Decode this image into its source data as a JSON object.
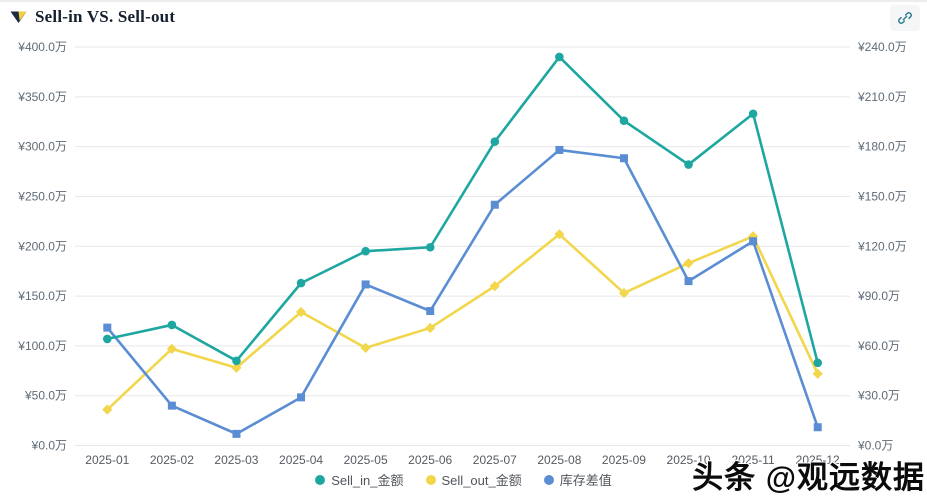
{
  "header": {
    "title": "Sell-in VS. Sell-out"
  },
  "toolbar": {
    "link_button": "share-link"
  },
  "watermark": {
    "text": "头条 @观远数据"
  },
  "chart_data": {
    "type": "line",
    "title": "Sell-in VS. Sell-out",
    "categories": [
      "2025-01",
      "2025-02",
      "2025-03",
      "2025-04",
      "2025-05",
      "2025-06",
      "2025-07",
      "2025-08",
      "2025-09",
      "2025-10",
      "2025-11",
      "2025-12"
    ],
    "series": [
      {
        "name": "Sell_in_金额",
        "yaxis": "left",
        "color": "#1ea7a0",
        "marker": "circle",
        "values": [
          107,
          121,
          85,
          163,
          195,
          199,
          305,
          390,
          326,
          282,
          333,
          83
        ]
      },
      {
        "name": "Sell_out_金额",
        "yaxis": "left",
        "color": "#f2d64b",
        "marker": "diamond",
        "values": [
          36,
          97,
          78,
          134,
          98,
          118,
          160,
          212,
          153,
          183,
          210,
          72
        ]
      },
      {
        "name": "库存差值",
        "yaxis": "right",
        "color": "#5a8dd3",
        "marker": "square",
        "values": [
          71,
          24,
          7,
          29,
          97,
          81,
          145,
          178,
          173,
          99,
          123,
          11
        ]
      }
    ],
    "left_axis": {
      "min": 0,
      "max": 400,
      "interval": 50,
      "unit": "万",
      "prefix": "¥",
      "labels": [
        "¥400.0万",
        "¥350.0万",
        "¥300.0万",
        "¥250.0万",
        "¥200.0万",
        "¥150.0万",
        "¥100.0万",
        "¥50.0万",
        "¥0.0万"
      ]
    },
    "right_axis": {
      "min": 0,
      "max": 240,
      "interval": 30,
      "unit": "万",
      "prefix": "¥",
      "labels": [
        "¥240.0万",
        "¥210.0万",
        "¥180.0万",
        "¥150.0万",
        "¥120.0万",
        "¥90.0万",
        "¥60.0万",
        "¥30.0万",
        "¥0.0万"
      ]
    },
    "grid": true,
    "legend_position": "bottom",
    "legend": [
      "Sell_in_金额",
      "Sell_out_金额",
      "库存差值"
    ]
  },
  "colors": {
    "grid_line": "#e8e8ea",
    "axis_text": "#5f6b76",
    "xaxis_text": "#565b61",
    "title_text": "#15202e",
    "link_icon": "#2c7d8e",
    "brand_dark": "#1f2a44",
    "brand_yellow": "#f2d23d"
  }
}
